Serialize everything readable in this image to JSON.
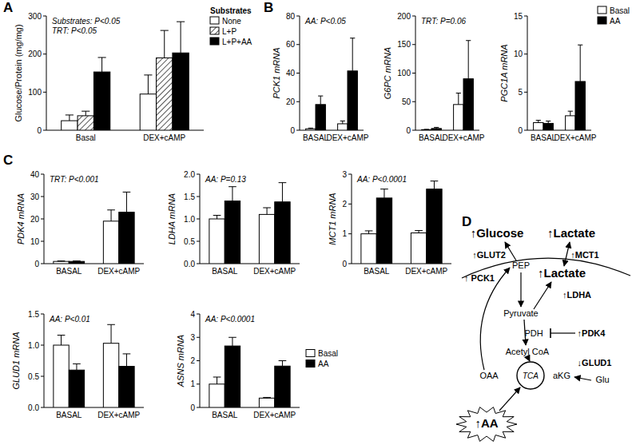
{
  "panel_labels": [
    "A",
    "B",
    "C",
    "D"
  ],
  "chart_data": [
    {
      "type": "bar",
      "y_label": "Glucose/Protein (mg/mg)",
      "categories": [
        "Basal",
        "DEX+cAMP"
      ],
      "series": [
        {
          "name": "None",
          "color": "#ffffff",
          "values": [
            25,
            95
          ],
          "errors": [
            15,
            50
          ]
        },
        {
          "name": "L+P",
          "color": "#555555",
          "line_style": "hatched",
          "values": [
            38,
            190
          ],
          "errors": [
            12,
            72
          ]
        },
        {
          "name": "L+P+AA",
          "color": "#000000",
          "values": [
            153,
            203
          ],
          "errors": [
            38,
            82
          ]
        }
      ],
      "ylim": [
        0,
        300
      ],
      "yticks": [
        0,
        100,
        200,
        300
      ],
      "annotations": [
        "Substrates: P<0.05",
        "TRT: P<0.05"
      ],
      "legend": "top-right",
      "legend_title": "Substrates"
    },
    {
      "type": "bar",
      "y_label": "PCK1 mRNA",
      "categories": [
        "BASAL",
        "DEX+cAMP"
      ],
      "series": [
        {
          "name": "Basal",
          "color": "#ffffff",
          "values": [
            1,
            4.5
          ],
          "errors": [
            0.5,
            2
          ]
        },
        {
          "name": "AA",
          "color": "#000000",
          "values": [
            18,
            41.5
          ],
          "errors": [
            6,
            23
          ]
        }
      ],
      "ylim": [
        0,
        80
      ],
      "yticks": [
        0,
        20,
        40,
        60,
        80
      ],
      "annotations": [
        "AA: P<0.05"
      ]
    },
    {
      "type": "bar",
      "y_label": "G6PC mRNA",
      "categories": [
        "BASAL",
        "DEX+cAMP"
      ],
      "series": [
        {
          "name": "Basal",
          "color": "#ffffff",
          "values": [
            1,
            45
          ],
          "errors": [
            0.5,
            20
          ]
        },
        {
          "name": "AA",
          "color": "#000000",
          "values": [
            3,
            90
          ],
          "errors": [
            2,
            67
          ]
        }
      ],
      "ylim": [
        0,
        200
      ],
      "yticks": [
        0,
        50,
        100,
        150,
        200
      ],
      "annotations": [
        "TRT: P=0.06"
      ]
    },
    {
      "type": "bar",
      "y_label": "PGC1A mRNA",
      "categories": [
        "BASAL",
        "DEX+cAMP"
      ],
      "series": [
        {
          "name": "Basal",
          "color": "#ffffff",
          "values": [
            1,
            1.9
          ],
          "errors": [
            0.3,
            0.6
          ]
        },
        {
          "name": "AA",
          "color": "#000000",
          "values": [
            0.9,
            6.4
          ],
          "errors": [
            0.3,
            4.8
          ]
        }
      ],
      "ylim": [
        0,
        15
      ],
      "yticks": [
        0,
        5,
        10,
        15
      ],
      "legend": "top-right"
    },
    {
      "type": "bar",
      "y_label": "PDK4 mRNA",
      "categories": [
        "BASAL",
        "DEX+cAMP"
      ],
      "series": [
        {
          "name": "Basal",
          "color": "#ffffff",
          "values": [
            1,
            19
          ],
          "errors": [
            0.2,
            5
          ]
        },
        {
          "name": "AA",
          "color": "#000000",
          "values": [
            1,
            23
          ],
          "errors": [
            0.2,
            9
          ]
        }
      ],
      "ylim": [
        0,
        40
      ],
      "yticks": [
        0,
        10,
        20,
        30,
        40
      ],
      "annotations": [
        "TRT: P<0.001"
      ]
    },
    {
      "type": "bar",
      "y_label": "LDHA mRNA",
      "categories": [
        "BASAL",
        "DEX+cAMP"
      ],
      "series": [
        {
          "name": "Basal",
          "color": "#ffffff",
          "values": [
            1.0,
            1.1
          ],
          "errors": [
            0.08,
            0.15
          ]
        },
        {
          "name": "AA",
          "color": "#000000",
          "values": [
            1.4,
            1.38
          ],
          "errors": [
            0.32,
            0.43
          ]
        }
      ],
      "ylim": [
        0,
        2
      ],
      "yticks": [
        {
          "value": 0,
          "label": "0.0"
        },
        0.5,
        {
          "value": 1,
          "label": "1.0"
        },
        1.5,
        {
          "value": 2,
          "label": "2.0"
        }
      ],
      "annotations": [
        "AA: P=0.13"
      ]
    },
    {
      "type": "bar",
      "y_label": "MCT1 mRNA",
      "categories": [
        "BASAL",
        "DEX+cAMP"
      ],
      "series": [
        {
          "name": "Basal",
          "color": "#ffffff",
          "values": [
            1.0,
            1.03
          ],
          "errors": [
            0.1,
            0.08
          ]
        },
        {
          "name": "AA",
          "color": "#000000",
          "values": [
            2.2,
            2.5
          ],
          "errors": [
            0.3,
            0.27
          ]
        }
      ],
      "ylim": [
        0,
        3
      ],
      "yticks": [
        0,
        1,
        2,
        3
      ],
      "annotations": [
        "AA: P<0.0001"
      ]
    },
    {
      "type": "bar",
      "y_label": "GLUD1 mRNA",
      "categories": [
        "BASAL",
        "DEX+cAMP"
      ],
      "series": [
        {
          "name": "Basal",
          "color": "#ffffff",
          "values": [
            1.0,
            1.03
          ],
          "errors": [
            0.16,
            0.3
          ]
        },
        {
          "name": "AA",
          "color": "#000000",
          "values": [
            0.6,
            0.66
          ],
          "errors": [
            0.1,
            0.2
          ]
        }
      ],
      "ylim": [
        0,
        1.5
      ],
      "yticks": [
        {
          "value": 0,
          "label": "0.0"
        },
        0.5,
        {
          "value": 1,
          "label": "1.0"
        },
        1.5
      ],
      "annotations": [
        "AA: P<0.01"
      ]
    },
    {
      "type": "bar",
      "y_label": "ASNS mRNA",
      "categories": [
        "BASAL",
        "DEX+cAMP"
      ],
      "series": [
        {
          "name": "Basal",
          "color": "#ffffff",
          "values": [
            1.0,
            0.4
          ],
          "errors": [
            0.3,
            0.03
          ]
        },
        {
          "name": "AA",
          "color": "#000000",
          "values": [
            2.63,
            1.77
          ],
          "errors": [
            0.37,
            0.23
          ]
        }
      ],
      "ylim": [
        0,
        4
      ],
      "yticks": [
        0,
        1,
        2,
        3,
        4
      ],
      "annotations": [
        "AA: P<0.0001"
      ],
      "legend": "right"
    }
  ],
  "diagram": {
    "nodes": [
      {
        "label": "↑Glucose"
      },
      {
        "label": "↑Lactate"
      },
      {
        "label": "↑GLUT2"
      },
      {
        "label": "↑MCT1"
      },
      {
        "label": "↑ PCK1"
      },
      {
        "label": "PEP"
      },
      {
        "label": "↑Lactate"
      },
      {
        "label": "↑LDHA"
      },
      {
        "label": "Pyruvate"
      },
      {
        "label": "PDH"
      },
      {
        "label": "↑PDK4"
      },
      {
        "label": "Acetyl CoA"
      },
      {
        "label": "OAA"
      },
      {
        "label": "TCA"
      },
      {
        "label": "aKG"
      },
      {
        "label": "↓GLUD1"
      },
      {
        "label": "Glu"
      },
      {
        "label": "↑AA"
      }
    ]
  }
}
